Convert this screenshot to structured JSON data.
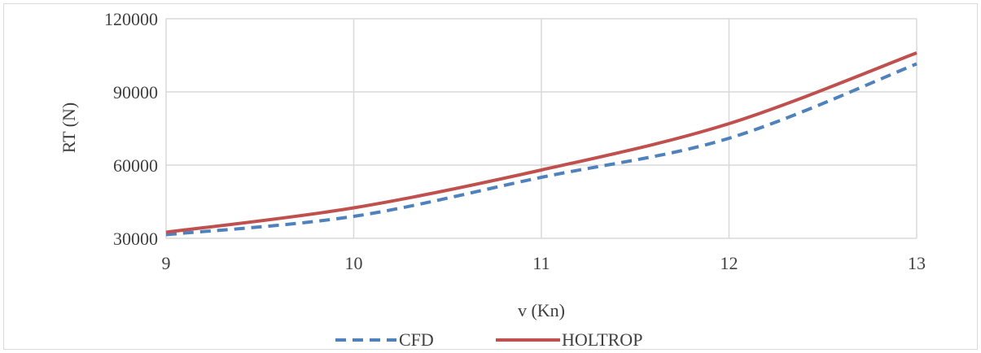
{
  "chart_data": {
    "type": "line",
    "title": "",
    "xlabel": "v (Kn)",
    "ylabel": "RT (N)",
    "xlim": [
      9,
      13
    ],
    "ylim": [
      30000,
      120000
    ],
    "x_ticks": [
      9,
      10,
      11,
      12,
      13
    ],
    "y_ticks": [
      30000,
      60000,
      90000,
      120000
    ],
    "x_tick_labels": [
      "9",
      "10",
      "11",
      "12",
      "13"
    ],
    "y_tick_labels": [
      "30000",
      "60000",
      "90000",
      "120000"
    ],
    "grid": true,
    "legend_position": "bottom",
    "series": [
      {
        "name": "CFD",
        "color": "#4f81bd",
        "style": "dashed",
        "x": [
          9,
          10,
          11,
          12,
          13
        ],
        "values": [
          31500,
          39000,
          55000,
          71000,
          101500
        ]
      },
      {
        "name": "HOLTROP",
        "color": "#c0504d",
        "style": "solid",
        "x": [
          9,
          10,
          11,
          12,
          13
        ],
        "values": [
          32500,
          42500,
          58000,
          77000,
          106000
        ]
      }
    ]
  }
}
